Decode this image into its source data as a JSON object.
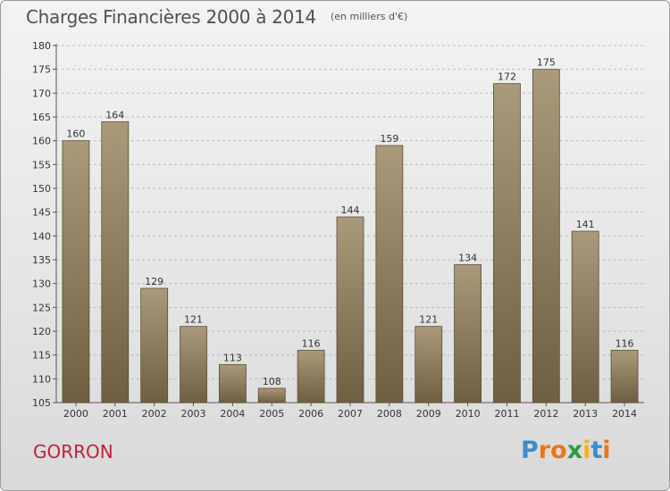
{
  "chart_data": {
    "type": "bar",
    "title": "Charges Financières 2000 à 2014",
    "subtitle": "(en milliers d'€)",
    "categories": [
      "2000",
      "2001",
      "2002",
      "2003",
      "2004",
      "2005",
      "2006",
      "2007",
      "2008",
      "2009",
      "2010",
      "2011",
      "2012",
      "2013",
      "2014"
    ],
    "values": [
      160,
      164,
      129,
      121,
      113,
      108,
      116,
      144,
      159,
      121,
      134,
      172,
      175,
      141,
      116
    ],
    "ylim": [
      105,
      180
    ],
    "yticks": [
      105,
      110,
      115,
      120,
      125,
      130,
      135,
      140,
      145,
      150,
      155,
      160,
      165,
      170,
      175,
      180
    ],
    "grid": true,
    "colors": {
      "bar_light": "#a99a7c",
      "bar_dark": "#6e5f43",
      "grid": "#bdbdbd",
      "text": "#333333"
    }
  },
  "footer": {
    "commune": "GORRON",
    "logo_letters": [
      "P",
      "r",
      "o",
      "x",
      "i",
      "t",
      "i"
    ],
    "logo_colors": [
      "#3a8fc9",
      "#e8761e",
      "#e8761e",
      "#2f9b3e",
      "#f0b323",
      "#3a8fc9",
      "#e8761e"
    ]
  }
}
